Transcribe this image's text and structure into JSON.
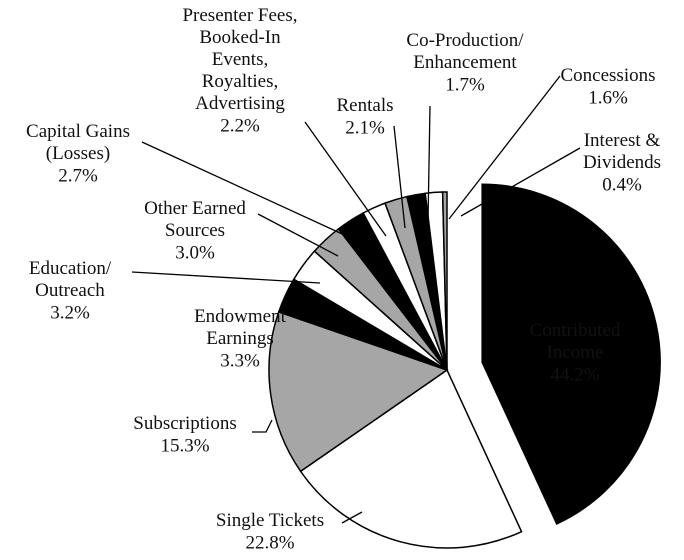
{
  "chart_data": {
    "type": "pie",
    "categories": [
      "Contributed\nIncome",
      "Single Tickets",
      "Subscriptions",
      "Endowment\nEarnings",
      "Education/\nOutreach",
      "Other Earned\nSources",
      "Capital Gains\n(Losses)",
      "Presenter Fees,\nBooked-In\nEvents,\nRoyalties,\nAdvertising",
      "Rentals",
      "Co-Production/\nEnhancement",
      "Concessions",
      "Interest &\nDividends"
    ],
    "values": [
      44.2,
      22.8,
      15.3,
      3.3,
      3.2,
      3.0,
      2.7,
      2.2,
      2.1,
      1.7,
      1.6,
      0.4
    ],
    "value_labels": [
      "44.2%",
      "22.8%",
      "15.3%",
      "3.3%",
      "3.2%",
      "3.0%",
      "2.7%",
      "2.2%",
      "2.1%",
      "1.7%",
      "1.6%",
      "0.4%"
    ],
    "colors": [
      "#000000",
      "#ffffff",
      "#a6a6a6",
      "#000000",
      "#ffffff",
      "#a6a6a6",
      "#000000",
      "#ffffff",
      "#a6a6a6",
      "#000000",
      "#ffffff",
      "#a6a6a6"
    ],
    "exploded": [
      0
    ]
  }
}
